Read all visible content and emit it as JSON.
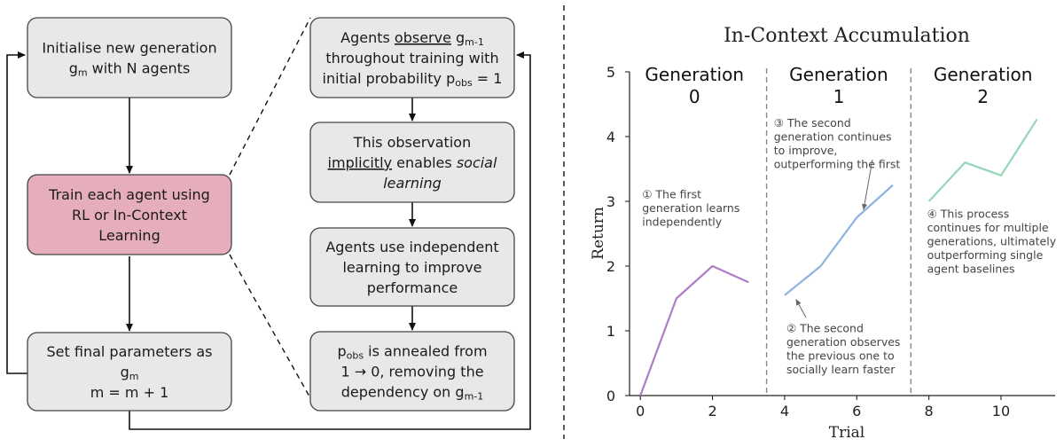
{
  "flowchart": {
    "left_boxes": [
      {
        "lines": [
          [
            "Initialise new generation"
          ],
          [
            "g",
            {
              "sub": "m"
            },
            " with N agents"
          ]
        ],
        "highlight": false
      },
      {
        "lines": [
          [
            "Train each agent using"
          ],
          [
            "RL or In-Context"
          ],
          [
            "Learning"
          ]
        ],
        "highlight": true
      },
      {
        "lines": [
          [
            "Set final parameters as"
          ],
          [
            "g",
            {
              "sub": "m"
            }
          ],
          [
            "m = m + 1"
          ]
        ],
        "highlight": false
      }
    ],
    "right_boxes": [
      {
        "lines": [
          [
            "Agents ",
            {
              "u": "observe"
            },
            " g",
            {
              "sub": "m-1"
            }
          ],
          [
            "throughout training with"
          ],
          [
            "initial probability p",
            {
              "sub": "obs"
            },
            " = 1"
          ]
        ]
      },
      {
        "lines": [
          [
            "This observation"
          ],
          [
            {
              "u": "implicitly"
            },
            " enables ",
            {
              "i": "social"
            }
          ],
          [
            {
              "i": "learning"
            }
          ]
        ]
      },
      {
        "lines": [
          [
            "Agents use independent"
          ],
          [
            "learning to improve"
          ],
          [
            "performance"
          ]
        ]
      },
      {
        "lines": [
          [
            "p",
            {
              "sub": "obs"
            },
            " is annealed from"
          ],
          [
            "1 → 0",
            ", removing the"
          ],
          [
            "dependency on g",
            {
              "sub": "m-1"
            }
          ]
        ]
      }
    ],
    "colors": {
      "box_fill": "#e8e8e8",
      "highlight_fill": "#e6aebb",
      "stroke": "#444444"
    }
  },
  "chart_data": {
    "type": "line",
    "title": "In-Context Accumulation",
    "xlabel": "Trial",
    "ylabel": "Return",
    "xlim": [
      -0.3,
      11.5
    ],
    "ylim": [
      0,
      5
    ],
    "xticks": [
      0,
      2,
      4,
      6,
      8,
      10
    ],
    "yticks": [
      0,
      1,
      2,
      3,
      4,
      5
    ],
    "generation_boundaries": [
      3.5,
      7.5
    ],
    "generation_labels": [
      {
        "lines": [
          "Generation",
          "0"
        ],
        "x": 1.5
      },
      {
        "lines": [
          "Generation",
          "1"
        ],
        "x": 5.5
      },
      {
        "lines": [
          "Generation",
          "2"
        ],
        "x": 9.5
      }
    ],
    "series": [
      {
        "x": [
          0,
          1,
          2,
          3
        ],
        "y": [
          0,
          1.5,
          2.0,
          1.75
        ],
        "color": "#b07cc6"
      },
      {
        "x": [
          4,
          5,
          6,
          7
        ],
        "y": [
          1.55,
          2.0,
          2.75,
          3.25
        ],
        "color": "#8fb3df"
      },
      {
        "x": [
          8,
          9,
          10,
          11
        ],
        "y": [
          3.0,
          3.6,
          3.4,
          4.27
        ],
        "color": "#93d6b8"
      }
    ],
    "annotations": [
      {
        "lines": [
          "① The first",
          "generation learns",
          "independently"
        ],
        "x": 0.05,
        "y": 3.05
      },
      {
        "lines": [
          "③ The second",
          "generation continues",
          "to improve,",
          "outperforming the first"
        ],
        "x": 3.7,
        "y": 4.15
      },
      {
        "lines": [
          "② The second",
          "generation observes",
          "the previous one to",
          "socially learn faster"
        ],
        "x": 4.05,
        "y": 0.98
      },
      {
        "lines": [
          "④ This process",
          "continues for multiple",
          "generations, ultimately",
          "outperforming single",
          "agent baselines"
        ],
        "x": 7.95,
        "y": 2.75
      }
    ]
  }
}
